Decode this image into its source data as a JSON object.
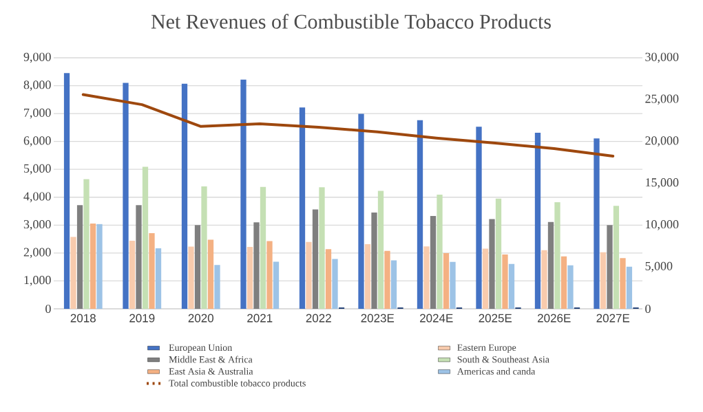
{
  "chart_data": {
    "type": "bar",
    "title": "Net Revenues of Combustible Tobacco Products",
    "categories": [
      "2018",
      "2019",
      "2020",
      "2021",
      "2022",
      "2023E",
      "2024E",
      "2025E",
      "2026E",
      "2027E"
    ],
    "series": [
      {
        "name": "European Union",
        "color": "#4472c4",
        "values": [
          8450,
          8100,
          8070,
          8220,
          7220,
          6990,
          6760,
          6530,
          6310,
          6110
        ]
      },
      {
        "name": "Eastern Europe",
        "color": "#f8cbad",
        "values": [
          2580,
          2440,
          2230,
          2220,
          2400,
          2320,
          2240,
          2160,
          2100,
          2030
        ]
      },
      {
        "name": "Middle East & Africa",
        "color": "#7f7f7f",
        "values": [
          3720,
          3720,
          3000,
          3100,
          3560,
          3450,
          3330,
          3220,
          3110,
          3000
        ]
      },
      {
        "name": "South & Southeast Asia",
        "color": "#c5e0b4",
        "values": [
          4650,
          5090,
          4390,
          4370,
          4360,
          4230,
          4090,
          3950,
          3820,
          3690
        ]
      },
      {
        "name": "East Asia & Australia",
        "color": "#f4b183",
        "values": [
          3060,
          2710,
          2480,
          2430,
          2140,
          2080,
          2000,
          1950,
          1880,
          1820
        ]
      },
      {
        "name": "Americas and canda",
        "color": "#9dc3e6",
        "values": [
          3040,
          2170,
          1570,
          1690,
          1790,
          1740,
          1680,
          1610,
          1560,
          1510
        ]
      },
      {
        "color": "#264478",
        "values": [
          null,
          null,
          null,
          null,
          50,
          50,
          50,
          50,
          50,
          50
        ]
      },
      {
        "name": "Total combustible tobacco products",
        "color": "#9e480e",
        "type": "line",
        "axis": "y2",
        "values": [
          25600,
          24400,
          21800,
          22100,
          21700,
          21150,
          20400,
          19800,
          19150,
          18250
        ]
      }
    ],
    "ylim": [
      0,
      9000
    ],
    "yticks": [
      {
        "value": 0,
        "label": "0"
      },
      {
        "value": 1000,
        "label": "1,000"
      },
      {
        "value": 2000,
        "label": "2,000"
      },
      {
        "value": 3000,
        "label": "3,000"
      },
      {
        "value": 4000,
        "label": "4,000"
      },
      {
        "value": 5000,
        "label": "5,000"
      },
      {
        "value": 6000,
        "label": "6,000"
      },
      {
        "value": 7000,
        "label": "7,000"
      },
      {
        "value": 8000,
        "label": "8,000"
      },
      {
        "value": 9000,
        "label": "9,000"
      }
    ],
    "y2lim": [
      0,
      30000
    ],
    "y2ticks": [
      {
        "value": 0,
        "label": "0"
      },
      {
        "value": 5000,
        "label": "5,000"
      },
      {
        "value": 10000,
        "label": "10,000"
      },
      {
        "value": 15000,
        "label": "15,000"
      },
      {
        "value": 20000,
        "label": "20,000"
      },
      {
        "value": 25000,
        "label": "25,000"
      },
      {
        "value": 30000,
        "label": "30,000"
      }
    ],
    "grid": "y",
    "legend": "bottom"
  }
}
